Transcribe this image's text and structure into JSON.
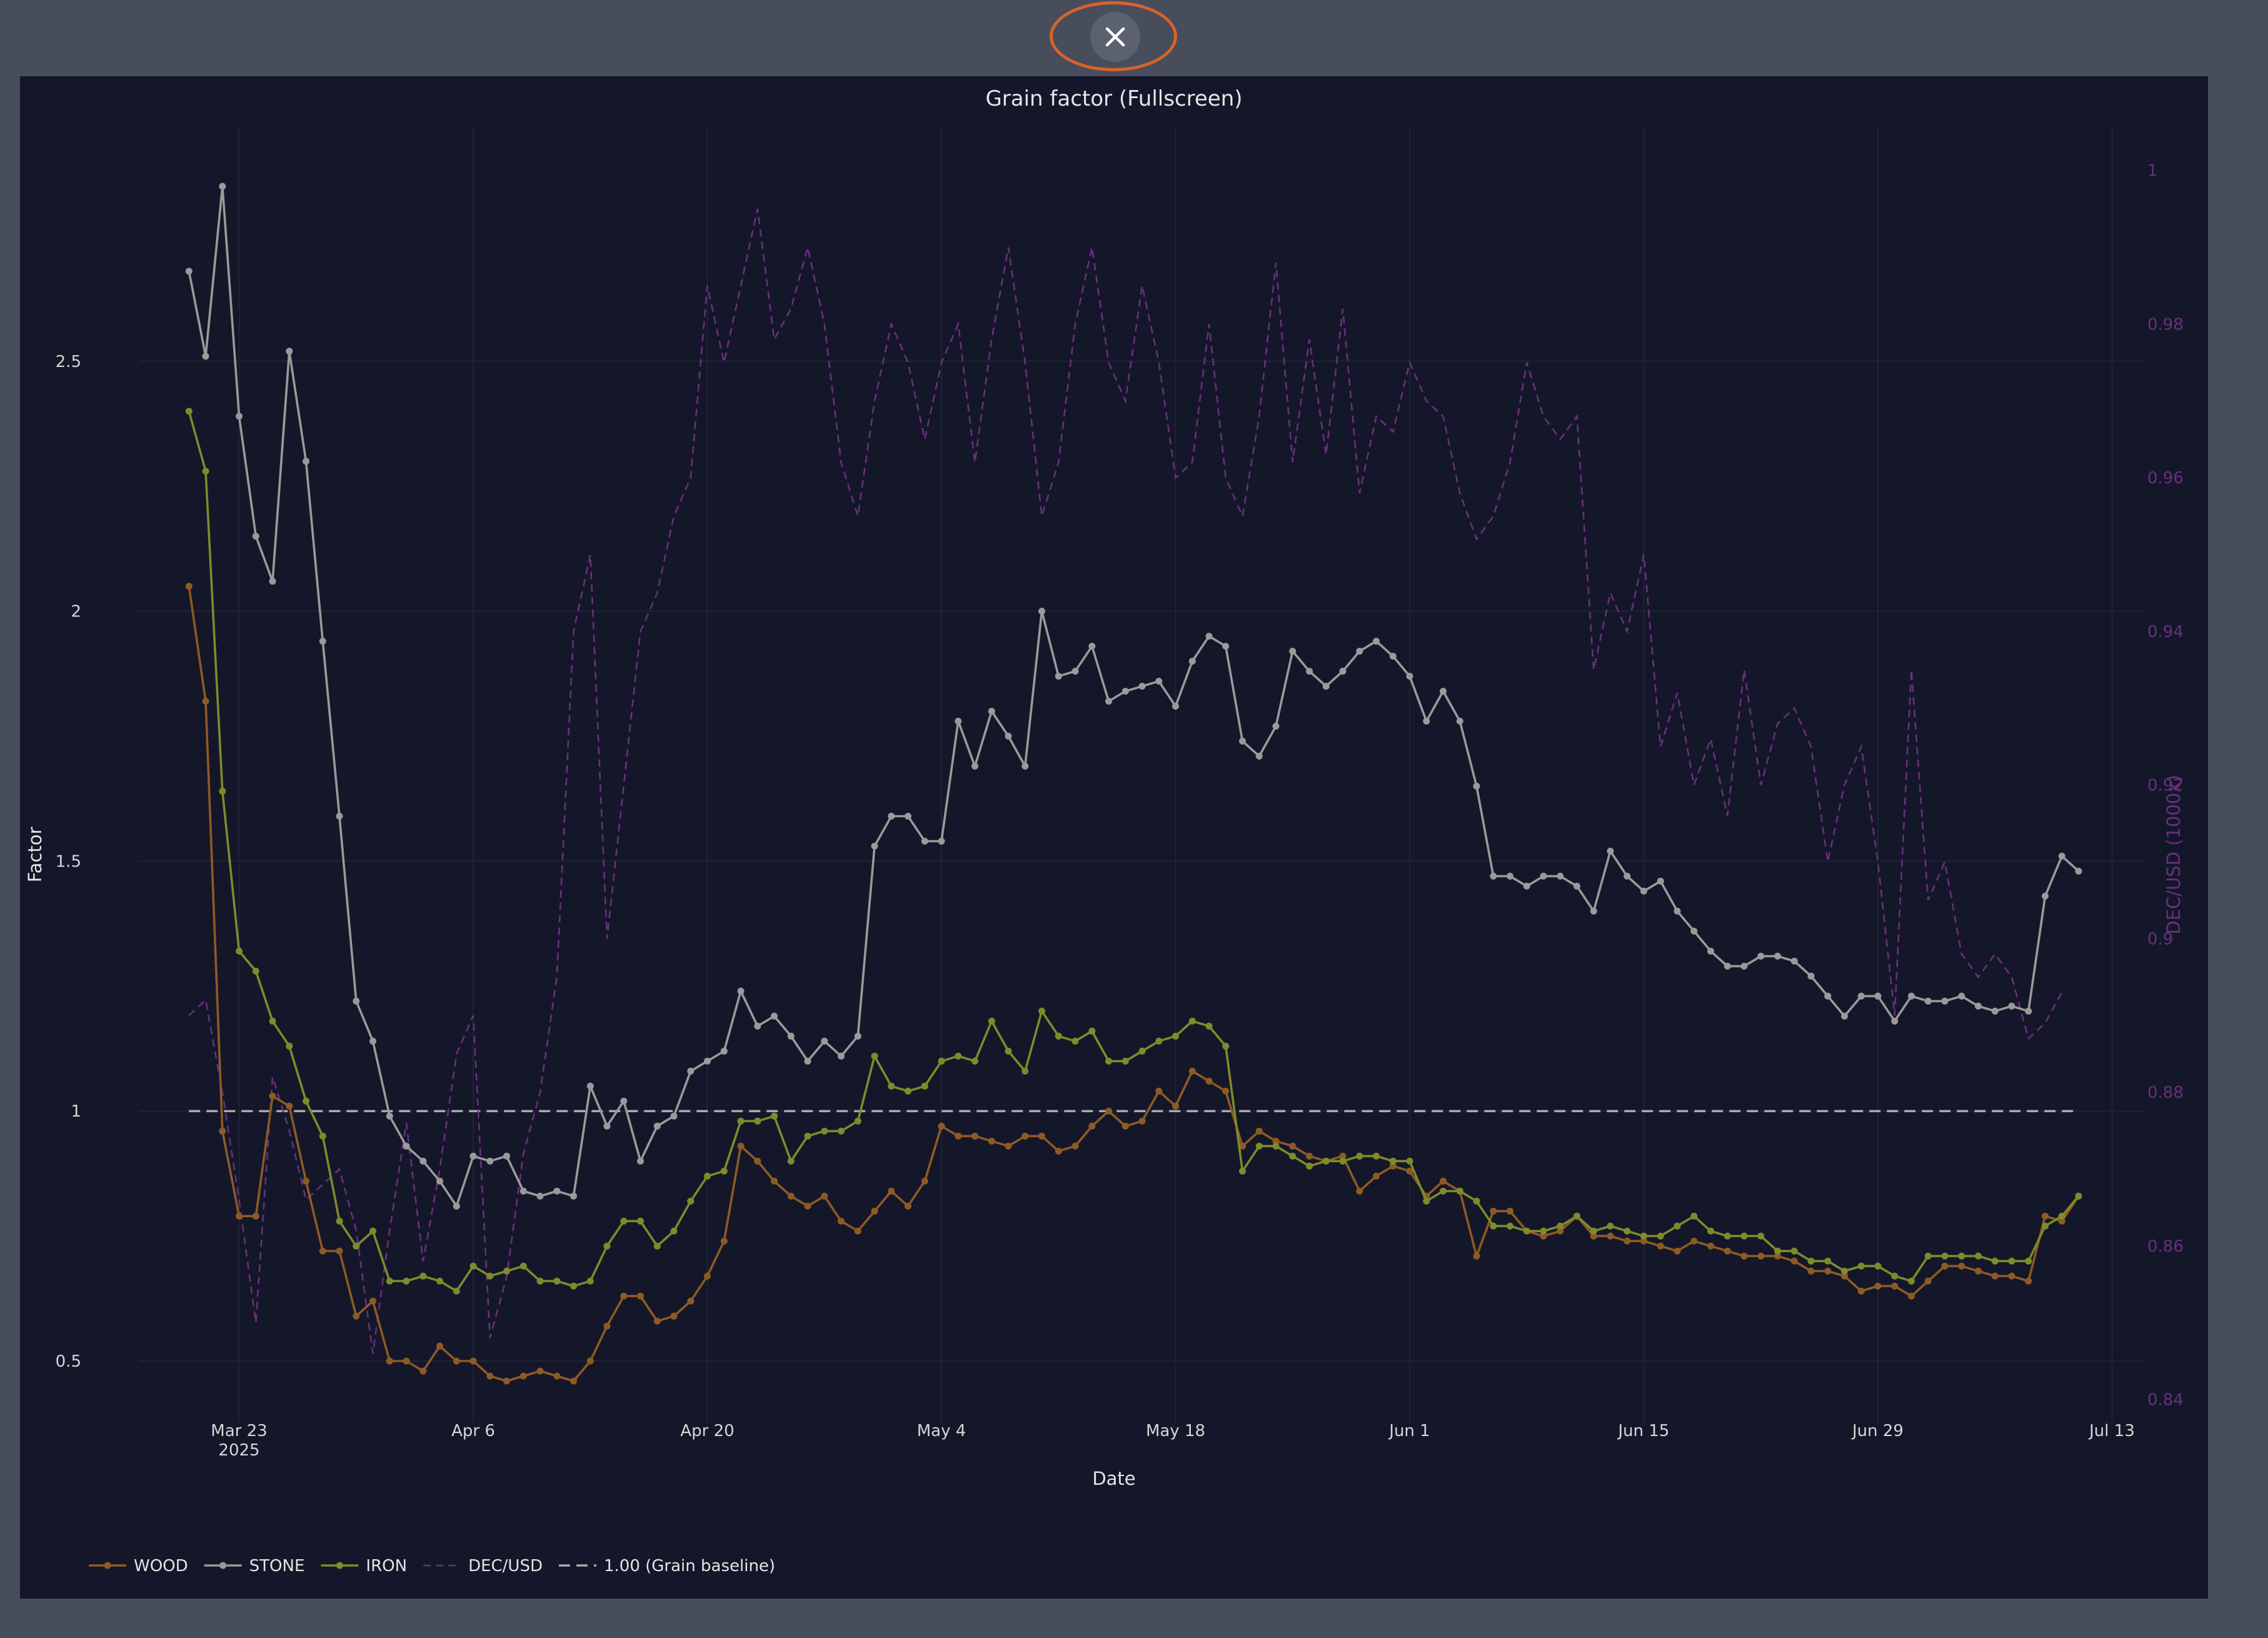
{
  "close_button": {
    "icon": "close-icon",
    "ring_color": "#d9622b"
  },
  "chart_data": {
    "type": "line",
    "title": "Grain factor (Fullscreen)",
    "xlabel": "Date",
    "ylabel": "Factor",
    "y2label": "DEC/USD (1000x)",
    "x_start": "2025-03-20",
    "x_ticks": [
      {
        "date": "2025-03-23",
        "label": "Mar 23",
        "sublabel": "2025"
      },
      {
        "date": "2025-04-06",
        "label": "Apr 6"
      },
      {
        "date": "2025-04-20",
        "label": "Apr 20"
      },
      {
        "date": "2025-05-04",
        "label": "May 4"
      },
      {
        "date": "2025-05-18",
        "label": "May 18"
      },
      {
        "date": "2025-06-01",
        "label": "Jun 1"
      },
      {
        "date": "2025-06-15",
        "label": "Jun 15"
      },
      {
        "date": "2025-06-29",
        "label": "Jun 29"
      },
      {
        "date": "2025-07-13",
        "label": "Jul 13"
      }
    ],
    "xlim": [
      "2025-03-17",
      "2025-07-15"
    ],
    "ylim": [
      0.4,
      2.92
    ],
    "y_ticks": [
      "0.5",
      "1",
      "1.5",
      "2",
      "2.5"
    ],
    "y2lim": [
      0.8385,
      1.0025
    ],
    "y2_ticks": [
      "0.84",
      "0.86",
      "0.88",
      "0.9",
      "0.92",
      "0.94",
      "0.96",
      "0.98",
      "1"
    ],
    "grid": true,
    "legend_position": "bottom-left",
    "series": [
      {
        "name": "WOOD",
        "color": "#8e5a24",
        "style": "line+markers",
        "axis": "y",
        "values": [
          2.05,
          1.82,
          0.96,
          0.79,
          0.79,
          1.03,
          1.01,
          0.86,
          0.72,
          0.72,
          0.59,
          0.62,
          0.5,
          0.5,
          0.48,
          0.53,
          0.5,
          0.5,
          0.47,
          0.46,
          0.47,
          0.48,
          0.47,
          0.46,
          0.5,
          0.57,
          0.63,
          0.63,
          0.58,
          0.59,
          0.62,
          0.67,
          0.74,
          0.93,
          0.9,
          0.86,
          0.83,
          0.81,
          0.83,
          0.78,
          0.76,
          0.8,
          0.84,
          0.81,
          0.86,
          0.97,
          0.95,
          0.95,
          0.94,
          0.93,
          0.95,
          0.95,
          0.92,
          0.93,
          0.97,
          1,
          0.97,
          0.98,
          1.04,
          1.01,
          1.08,
          1.06,
          1.04,
          0.93,
          0.96,
          0.94,
          0.93,
          0.91,
          0.9,
          0.91,
          0.84,
          0.87,
          0.89,
          0.88,
          0.83,
          0.86,
          0.84,
          0.71,
          0.8,
          0.8,
          0.76,
          0.75,
          0.76,
          0.79,
          0.75,
          0.75,
          0.74,
          0.74,
          0.73,
          0.72,
          0.74,
          0.73,
          0.72,
          0.71,
          0.71,
          0.71,
          0.7,
          0.68,
          0.68,
          0.67,
          0.64,
          0.65,
          0.65,
          0.63,
          0.66,
          0.69,
          0.69,
          0.68,
          0.67,
          0.67,
          0.66,
          0.79,
          0.78,
          0.83
        ]
      },
      {
        "name": "STONE",
        "color": "#9a9a9a",
        "style": "line+markers",
        "axis": "y",
        "values": [
          2.68,
          2.51,
          2.85,
          2.39,
          2.15,
          2.06,
          2.52,
          2.3,
          1.94,
          1.59,
          1.22,
          1.14,
          0.99,
          0.93,
          0.9,
          0.86,
          0.81,
          0.91,
          0.9,
          0.91,
          0.84,
          0.83,
          0.84,
          0.83,
          1.05,
          0.97,
          1.02,
          0.9,
          0.97,
          0.99,
          1.08,
          1.1,
          1.12,
          1.24,
          1.17,
          1.19,
          1.15,
          1.1,
          1.14,
          1.11,
          1.15,
          1.53,
          1.59,
          1.59,
          1.54,
          1.54,
          1.78,
          1.69,
          1.8,
          1.75,
          1.69,
          2,
          1.87,
          1.88,
          1.93,
          1.82,
          1.84,
          1.85,
          1.86,
          1.81,
          1.9,
          1.95,
          1.93,
          1.74,
          1.71,
          1.77,
          1.92,
          1.88,
          1.85,
          1.88,
          1.92,
          1.94,
          1.91,
          1.87,
          1.78,
          1.84,
          1.78,
          1.65,
          1.47,
          1.47,
          1.45,
          1.47,
          1.47,
          1.45,
          1.4,
          1.52,
          1.47,
          1.44,
          1.46,
          1.4,
          1.36,
          1.32,
          1.29,
          1.29,
          1.31,
          1.31,
          1.3,
          1.27,
          1.23,
          1.19,
          1.23,
          1.23,
          1.18,
          1.23,
          1.22,
          1.22,
          1.23,
          1.21,
          1.2,
          1.21,
          1.2,
          1.43,
          1.51,
          1.48
        ]
      },
      {
        "name": "IRON",
        "color": "#7e8b2a",
        "style": "line+markers",
        "axis": "y",
        "values": [
          2.4,
          2.28,
          1.64,
          1.32,
          1.28,
          1.18,
          1.13,
          1.02,
          0.95,
          0.78,
          0.73,
          0.76,
          0.66,
          0.66,
          0.67,
          0.66,
          0.64,
          0.69,
          0.67,
          0.68,
          0.69,
          0.66,
          0.66,
          0.65,
          0.66,
          0.73,
          0.78,
          0.78,
          0.73,
          0.76,
          0.82,
          0.87,
          0.88,
          0.98,
          0.98,
          0.99,
          0.9,
          0.95,
          0.96,
          0.96,
          0.98,
          1.11,
          1.05,
          1.04,
          1.05,
          1.1,
          1.11,
          1.1,
          1.18,
          1.12,
          1.08,
          1.2,
          1.15,
          1.14,
          1.16,
          1.1,
          1.1,
          1.12,
          1.14,
          1.15,
          1.18,
          1.17,
          1.13,
          0.88,
          0.93,
          0.93,
          0.91,
          0.89,
          0.9,
          0.9,
          0.91,
          0.91,
          0.9,
          0.9,
          0.82,
          0.84,
          0.84,
          0.82,
          0.77,
          0.77,
          0.76,
          0.76,
          0.77,
          0.79,
          0.76,
          0.77,
          0.76,
          0.75,
          0.75,
          0.77,
          0.79,
          0.76,
          0.75,
          0.75,
          0.75,
          0.72,
          0.72,
          0.7,
          0.7,
          0.68,
          0.69,
          0.69,
          0.67,
          0.66,
          0.71,
          0.71,
          0.71,
          0.71,
          0.7,
          0.7,
          0.7,
          0.77,
          0.79,
          0.83
        ]
      },
      {
        "name": "DEC/USD",
        "color": "#6a2f7e",
        "style": "dashed",
        "axis": "y2",
        "values": [
          0.89,
          0.892,
          0.88,
          0.866,
          0.85,
          0.882,
          0.875,
          0.866,
          0.868,
          0.87,
          0.862,
          0.846,
          0.862,
          0.876,
          0.858,
          0.87,
          0.885,
          0.89,
          0.848,
          0.856,
          0.872,
          0.88,
          0.895,
          0.94,
          0.95,
          0.9,
          0.92,
          0.94,
          0.945,
          0.955,
          0.96,
          0.985,
          0.975,
          0.985,
          0.995,
          0.978,
          0.982,
          0.99,
          0.98,
          0.962,
          0.955,
          0.97,
          0.98,
          0.975,
          0.965,
          0.975,
          0.98,
          0.962,
          0.978,
          0.99,
          0.975,
          0.955,
          0.962,
          0.98,
          0.99,
          0.975,
          0.97,
          0.985,
          0.975,
          0.96,
          0.962,
          0.98,
          0.96,
          0.955,
          0.968,
          0.988,
          0.962,
          0.978,
          0.963,
          0.982,
          0.958,
          0.968,
          0.966,
          0.975,
          0.97,
          0.968,
          0.958,
          0.952,
          0.955,
          0.962,
          0.975,
          0.968,
          0.965,
          0.968,
          0.935,
          0.945,
          0.94,
          0.95,
          0.925,
          0.932,
          0.92,
          0.926,
          0.916,
          0.935,
          0.92,
          0.928,
          0.93,
          0.925,
          0.91,
          0.92,
          0.925,
          0.91,
          0.89,
          0.935,
          0.905,
          0.91,
          0.898,
          0.895,
          0.898,
          0.895,
          0.887,
          0.889,
          0.893
        ]
      }
    ],
    "reference_line": {
      "name": "1.00 (Grain baseline)",
      "value": 1.0,
      "color": "#aaaaaa",
      "style": "dashed"
    }
  },
  "colors": {
    "page_background": "#474d5b",
    "plot_background": "#141729",
    "text": "#e5e5e5",
    "tick_text": "#d6d6d6",
    "y2_text": "#6a2f7e"
  }
}
